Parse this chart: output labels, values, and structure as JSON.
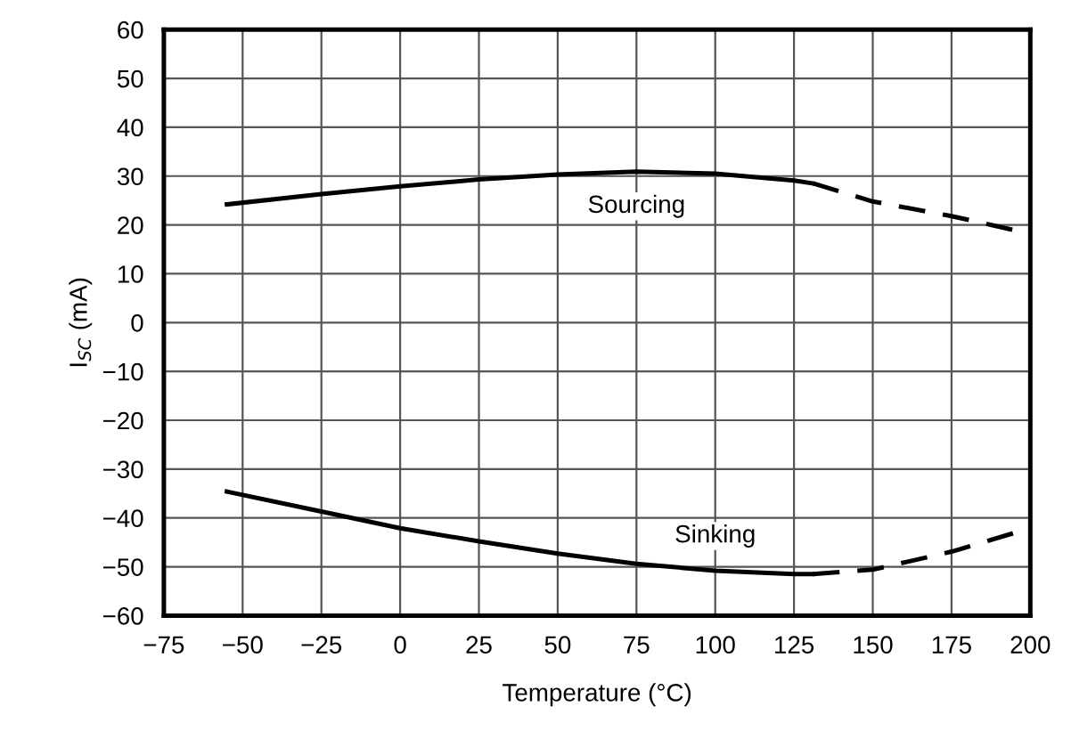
{
  "chart_data": {
    "type": "line",
    "xlabel": "Temperature (°C)",
    "ylabel": "I$_{SC}$ (mA)",
    "xlim": [
      -75,
      200
    ],
    "xticks": [
      {
        "value": -75,
        "label": "−75"
      },
      {
        "value": -50,
        "label": "−50"
      },
      {
        "value": -25,
        "label": "−25"
      },
      0,
      25,
      50,
      75,
      100,
      125,
      150,
      175,
      200
    ],
    "ylim": [
      -60,
      60
    ],
    "yticks": [
      {
        "value": -60,
        "label": "−60"
      },
      {
        "value": -50,
        "label": "−50"
      },
      {
        "value": -40,
        "label": "−40"
      },
      {
        "value": -30,
        "label": "−30"
      },
      {
        "value": -20,
        "label": "−20"
      },
      {
        "value": -10,
        "label": "−10"
      },
      0,
      10,
      20,
      30,
      40,
      50,
      60
    ],
    "grid": true,
    "legend": false,
    "marker": "none",
    "series": [
      {
        "name": "Sourcing",
        "color": "#000000",
        "line_style": "solid",
        "x": [
          -55,
          -25,
          0,
          25,
          50,
          75,
          100,
          125,
          131
        ],
        "values": [
          24.2,
          26.3,
          27.9,
          29.3,
          30.3,
          30.9,
          30.5,
          29.1,
          28.5
        ]
      },
      {
        "color": "#000000",
        "line_style": "dashed",
        "x": [
          131,
          150,
          175,
          200
        ],
        "values": [
          28.5,
          24.8,
          21.8,
          18.2
        ]
      },
      {
        "name": "Sinking",
        "color": "#000000",
        "line_style": "solid",
        "x": [
          -55,
          -25,
          0,
          25,
          50,
          75,
          100,
          125,
          131
        ],
        "values": [
          -34.6,
          -38.7,
          -42.1,
          -44.8,
          -47.3,
          -49.4,
          -50.8,
          -51.5,
          -51.5
        ]
      },
      {
        "color": "#000000",
        "line_style": "dashed",
        "x": [
          131,
          150,
          175,
          200
        ],
        "values": [
          -51.5,
          -50.6,
          -46.9,
          -42.1
        ]
      }
    ]
  }
}
